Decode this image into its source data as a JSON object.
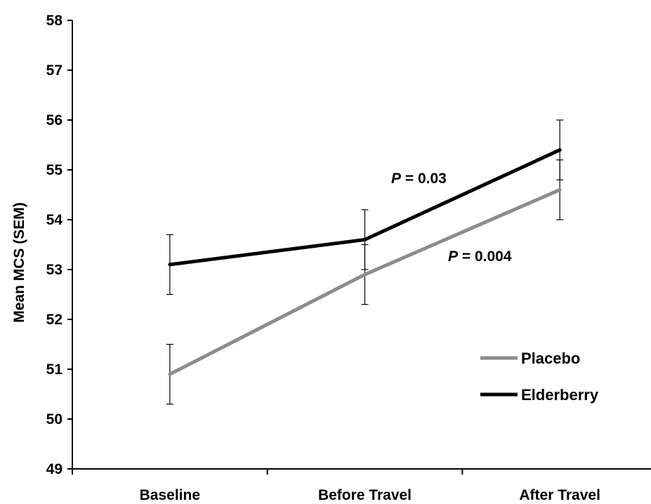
{
  "chart_data": {
    "type": "line",
    "categories": [
      "Baseline",
      "Before Travel",
      "After Travel"
    ],
    "ylabel": "Mean MCS (SEM)",
    "ylim": [
      49,
      58
    ],
    "yticks": [
      49,
      50,
      51,
      52,
      53,
      54,
      55,
      56,
      57,
      58
    ],
    "grid": false,
    "legend_position": "bottom-right",
    "series": [
      {
        "name": "Placebo",
        "color": "#8c8c8c",
        "values": [
          50.9,
          52.9,
          54.6
        ],
        "error": [
          0.6,
          0.6,
          0.6
        ]
      },
      {
        "name": "Elderberry",
        "color": "#000000",
        "values": [
          53.1,
          53.6,
          55.4
        ],
        "error": [
          0.6,
          0.6,
          0.6
        ]
      }
    ],
    "annotations": [
      {
        "prefix": "P",
        "text": " = 0.03",
        "near": "Elderberry segment Before Travel to After Travel"
      },
      {
        "prefix": "P",
        "text": " = 0.004",
        "near": "Placebo segment Before Travel to After Travel"
      }
    ]
  }
}
